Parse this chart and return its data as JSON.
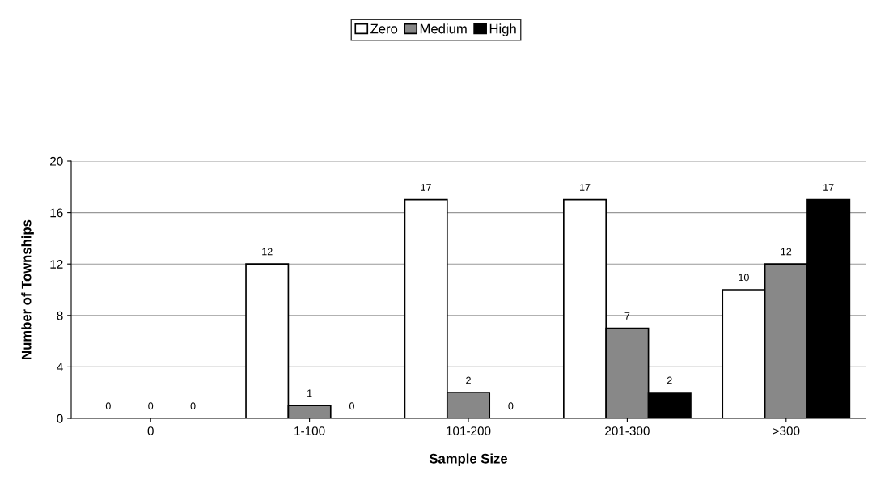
{
  "chart_data": {
    "type": "bar",
    "xlabel": "Sample Size",
    "ylabel": "Number of Townships",
    "categories": [
      "0",
      "1-100",
      "101-200",
      "201-300",
      ">300"
    ],
    "series": [
      {
        "name": "Zero",
        "color": "#ffffff",
        "values": [
          0,
          12,
          17,
          17,
          10
        ]
      },
      {
        "name": "Medium",
        "color": "#888888",
        "values": [
          0,
          1,
          2,
          7,
          12
        ]
      },
      {
        "name": "High",
        "color": "#000000",
        "values": [
          0,
          0,
          0,
          2,
          17
        ]
      }
    ],
    "ylim": [
      0,
      20
    ],
    "yticks": [
      0,
      4,
      8,
      12,
      16,
      20
    ],
    "grid": "y",
    "legend": "top",
    "data_labels": true
  }
}
